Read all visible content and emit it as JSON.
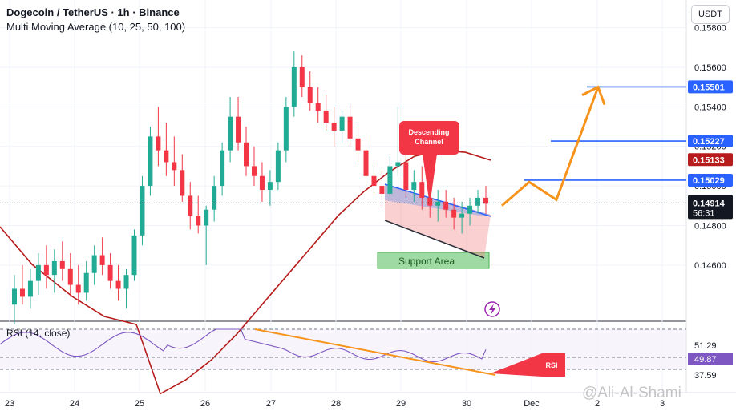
{
  "header": {
    "title": "Dogecoin / TetherUS · 1h · Binance",
    "indicator": "Multi Moving Average (10, 25, 50, 100)"
  },
  "currency_button": "USDT",
  "watermark": "@Ali-Al-Shami",
  "chart_data": {
    "type": "candlestick",
    "symbol": "DOGE/USDT",
    "timeframe": "1h",
    "exchange": "Binance",
    "x_ticks": [
      "23",
      "24",
      "25",
      "26",
      "27",
      "28",
      "29",
      "30",
      "Dec",
      "2",
      "3"
    ],
    "y_ticks": [
      "0.14600",
      "0.14800",
      "0.15000",
      "0.15200",
      "0.15400",
      "0.15600",
      "0.15800"
    ],
    "ylim": [
      0.1432,
      0.1594
    ],
    "price_levels": [
      {
        "label": "0.15501",
        "value": 0.15501,
        "color": "#2962ff"
      },
      {
        "label": "0.15227",
        "value": 0.15227,
        "color": "#2962ff"
      },
      {
        "label": "0.15029",
        "value": 0.15029,
        "color": "#2962ff"
      }
    ],
    "current_price": {
      "label": "0.14914",
      "value": 0.14914,
      "countdown": "56:31",
      "color": "#000000"
    },
    "moving_average": {
      "label": "0.15133",
      "value": 0.15133,
      "color": "#b71c1c"
    },
    "annotations": {
      "channel_callout": "Descending Channel",
      "support_box": "Support Area",
      "rsi_callout": "RSI"
    },
    "projection_path": [
      0.149,
      0.1502,
      0.1493,
      0.155
    ],
    "rsi": {
      "label": "RSI (14, close)",
      "levels": [
        "51.29",
        "49.87",
        "37.59"
      ],
      "values": [
        51.29,
        49.87,
        37.59
      ]
    },
    "ma_series": [
      0.1395,
      0.1402,
      0.1412,
      0.1425,
      0.144,
      0.1455,
      0.147,
      0.1485,
      0.1497,
      0.1507,
      0.1515,
      0.1518,
      0.1517,
      0.1513
    ],
    "ohlc": [
      [
        0.144,
        0.1455,
        0.143,
        0.1448
      ],
      [
        0.1448,
        0.146,
        0.144,
        0.1444
      ],
      [
        0.1444,
        0.1458,
        0.1438,
        0.1452
      ],
      [
        0.1452,
        0.1466,
        0.1445,
        0.146
      ],
      [
        0.146,
        0.147,
        0.1448,
        0.1455
      ],
      [
        0.1455,
        0.1468,
        0.1446,
        0.1462
      ],
      [
        0.1462,
        0.1472,
        0.1452,
        0.1458
      ],
      [
        0.1458,
        0.1466,
        0.1444,
        0.145
      ],
      [
        0.145,
        0.146,
        0.144,
        0.1446
      ],
      [
        0.1446,
        0.1462,
        0.1442,
        0.1456
      ],
      [
        0.1456,
        0.147,
        0.145,
        0.1465
      ],
      [
        0.1465,
        0.1474,
        0.1455,
        0.146
      ],
      [
        0.146,
        0.1466,
        0.1448,
        0.1452
      ],
      [
        0.1452,
        0.146,
        0.1442,
        0.1448
      ],
      [
        0.1448,
        0.1458,
        0.1438,
        0.1455
      ],
      [
        0.1455,
        0.1478,
        0.1452,
        0.1475
      ],
      [
        0.1475,
        0.1505,
        0.147,
        0.15
      ],
      [
        0.15,
        0.153,
        0.1495,
        0.1525
      ],
      [
        0.1525,
        0.154,
        0.151,
        0.1518
      ],
      [
        0.1518,
        0.1532,
        0.1505,
        0.1512
      ],
      [
        0.1512,
        0.1525,
        0.15,
        0.1508
      ],
      [
        0.1508,
        0.1516,
        0.1492,
        0.1495
      ],
      [
        0.1495,
        0.1502,
        0.1478,
        0.1485
      ],
      [
        0.1485,
        0.1495,
        0.1476,
        0.148
      ],
      [
        0.148,
        0.149,
        0.146,
        0.1488
      ],
      [
        0.1488,
        0.1505,
        0.1482,
        0.15
      ],
      [
        0.15,
        0.1522,
        0.1495,
        0.1518
      ],
      [
        0.1518,
        0.1545,
        0.1512,
        0.1535
      ],
      [
        0.1535,
        0.1545,
        0.1518,
        0.1522
      ],
      [
        0.1522,
        0.153,
        0.1505,
        0.151
      ],
      [
        0.151,
        0.152,
        0.15,
        0.1505
      ],
      [
        0.1505,
        0.1512,
        0.1492,
        0.1498
      ],
      [
        0.1498,
        0.1508,
        0.149,
        0.1502
      ],
      [
        0.1502,
        0.1522,
        0.1498,
        0.1518
      ],
      [
        0.1518,
        0.1545,
        0.1512,
        0.154
      ],
      [
        0.154,
        0.1568,
        0.1535,
        0.156
      ],
      [
        0.156,
        0.1566,
        0.1545,
        0.155
      ],
      [
        0.155,
        0.1558,
        0.1538,
        0.1542
      ],
      [
        0.1542,
        0.155,
        0.1532,
        0.1538
      ],
      [
        0.1538,
        0.1546,
        0.1528,
        0.1532
      ],
      [
        0.1532,
        0.154,
        0.152,
        0.1528
      ],
      [
        0.1528,
        0.1538,
        0.1522,
        0.1535
      ],
      [
        0.1535,
        0.1542,
        0.152,
        0.1524
      ],
      [
        0.1524,
        0.153,
        0.1512,
        0.1518
      ],
      [
        0.1518,
        0.1526,
        0.15,
        0.1505
      ],
      [
        0.1505,
        0.1512,
        0.1495,
        0.15
      ],
      [
        0.15,
        0.1508,
        0.149,
        0.1496
      ],
      [
        0.1496,
        0.1515,
        0.1492,
        0.151
      ],
      [
        0.151,
        0.154,
        0.1505,
        0.1512
      ],
      [
        0.1512,
        0.1518,
        0.1494,
        0.1498
      ],
      [
        0.1498,
        0.1508,
        0.1492,
        0.1502
      ],
      [
        0.1502,
        0.151,
        0.1488,
        0.1494
      ],
      [
        0.1494,
        0.15,
        0.1484,
        0.149
      ],
      [
        0.149,
        0.1498,
        0.1482,
        0.1492
      ],
      [
        0.1492,
        0.1498,
        0.1484,
        0.1488
      ],
      [
        0.1488,
        0.1494,
        0.1478,
        0.1484
      ],
      [
        0.1484,
        0.1492,
        0.1476,
        0.1486
      ],
      [
        0.1486,
        0.1494,
        0.148,
        0.149
      ],
      [
        0.149,
        0.1498,
        0.1486,
        0.1494
      ],
      [
        0.1494,
        0.15,
        0.1486,
        0.1491
      ]
    ]
  }
}
